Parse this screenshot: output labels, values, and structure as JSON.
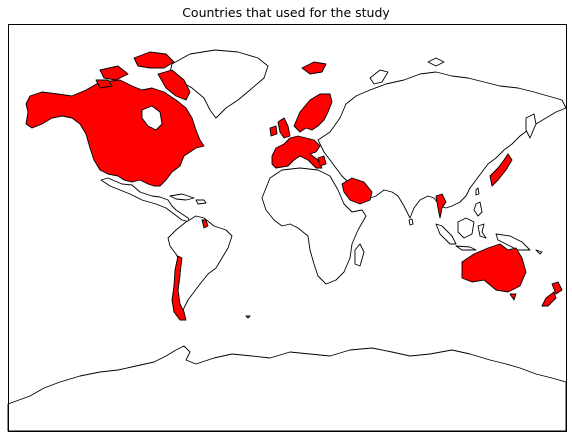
{
  "map": {
    "title": "Countries that used for the study",
    "projection": "mercator",
    "colors": {
      "highlight": "#ff0000",
      "land": "#ffffff",
      "coast": "#000000",
      "background": "#ffffff"
    },
    "highlighted_countries": [
      "canada",
      "united-states",
      "chile",
      "guyana",
      "united-kingdom",
      "ireland",
      "iceland",
      "norway",
      "sweden",
      "finland",
      "denmark",
      "germany",
      "netherlands",
      "belgium",
      "france",
      "spain",
      "portugal",
      "italy",
      "switzerland",
      "austria",
      "greece",
      "saudi-arabia",
      "thailand",
      "japan",
      "australia",
      "new-zealand"
    ]
  }
}
